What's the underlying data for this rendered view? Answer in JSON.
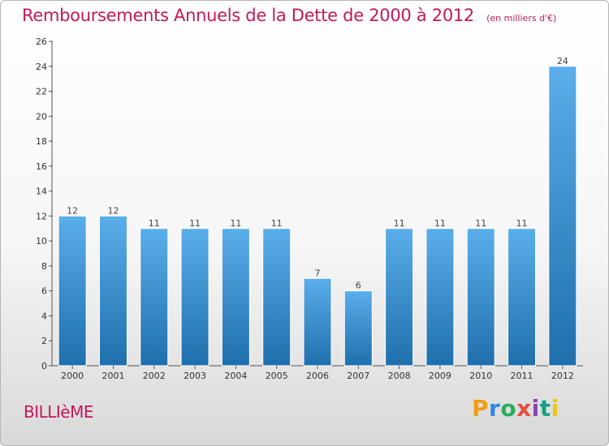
{
  "header": {
    "title": "Remboursements Annuels de la Dette de 2000 à 2012",
    "unit_note": "(en milliers d'€)"
  },
  "commune": "BILLIèME",
  "brand": {
    "name": "Proxiti",
    "letters": [
      "P",
      "r",
      "o",
      "x",
      "i",
      "t",
      "i"
    ]
  },
  "colors": {
    "bar_light": "#5aaeea",
    "bar_dark": "#1f6fad",
    "accent": "#c2185b"
  },
  "chart_data": {
    "type": "bar",
    "categories": [
      "2000",
      "2001",
      "2002",
      "2003",
      "2004",
      "2005",
      "2006",
      "2007",
      "2008",
      "2009",
      "2010",
      "2011",
      "2012"
    ],
    "values": [
      12,
      12,
      11,
      11,
      11,
      11,
      7,
      6,
      11,
      11,
      11,
      11,
      24
    ],
    "ylim": [
      0,
      26
    ],
    "yticks": [
      0,
      2,
      4,
      6,
      8,
      10,
      12,
      14,
      16,
      18,
      20,
      22,
      24,
      26
    ],
    "xlabel": "",
    "ylabel": "",
    "grid": false,
    "data_labels": true
  }
}
